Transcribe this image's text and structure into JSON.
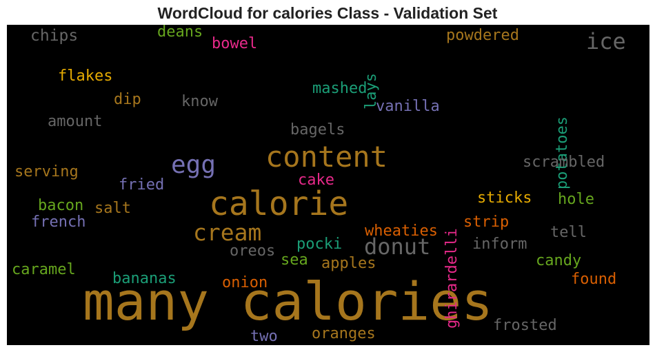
{
  "chart_data": {
    "type": "wordcloud",
    "title": "WordCloud for calories Class - Validation Set",
    "background": "#000000",
    "words": [
      {
        "text": "many calories",
        "color": "#a6761d",
        "rotate": false
      },
      {
        "text": "calorie",
        "color": "#a6761d",
        "rotate": false
      },
      {
        "text": "content",
        "color": "#a6761d",
        "rotate": false
      },
      {
        "text": "egg",
        "color": "#7570b3",
        "rotate": false
      },
      {
        "text": "cream",
        "color": "#a6761d",
        "rotate": false
      },
      {
        "text": "donut",
        "color": "#666666",
        "rotate": false
      },
      {
        "text": "ice",
        "color": "#666666",
        "rotate": false
      },
      {
        "text": "chips",
        "color": "#666666",
        "rotate": false
      },
      {
        "text": "deans",
        "color": "#66a61e",
        "rotate": false
      },
      {
        "text": "bowel",
        "color": "#e7298a",
        "rotate": false
      },
      {
        "text": "lays",
        "color": "#1b9e77",
        "rotate": true
      },
      {
        "text": "powdered",
        "color": "#a6761d",
        "rotate": false
      },
      {
        "text": "potatoes",
        "color": "#1b9e77",
        "rotate": true
      },
      {
        "text": "flakes",
        "color": "#e6ab02",
        "rotate": false
      },
      {
        "text": "mashed",
        "color": "#1b9e77",
        "rotate": false
      },
      {
        "text": "dip",
        "color": "#a6761d",
        "rotate": false
      },
      {
        "text": "know",
        "color": "#666666",
        "rotate": false
      },
      {
        "text": "vanilla",
        "color": "#7570b3",
        "rotate": false
      },
      {
        "text": "amount",
        "color": "#666666",
        "rotate": false
      },
      {
        "text": "bagels",
        "color": "#666666",
        "rotate": false
      },
      {
        "text": "ghirardelli",
        "color": "#e7298a",
        "rotate": true
      },
      {
        "text": "scrambled",
        "color": "#666666",
        "rotate": false
      },
      {
        "text": "serving",
        "color": "#a6761d",
        "rotate": false
      },
      {
        "text": "fried",
        "color": "#7570b3",
        "rotate": false
      },
      {
        "text": "cake",
        "color": "#e7298a",
        "rotate": false
      },
      {
        "text": "sticks",
        "color": "#e6ab02",
        "rotate": false
      },
      {
        "text": "hole",
        "color": "#66a61e",
        "rotate": false
      },
      {
        "text": "bacon",
        "color": "#66a61e",
        "rotate": false
      },
      {
        "text": "salt",
        "color": "#a6761d",
        "rotate": false
      },
      {
        "text": "french",
        "color": "#7570b3",
        "rotate": false
      },
      {
        "text": "wheaties",
        "color": "#d95f02",
        "rotate": false
      },
      {
        "text": "strip",
        "color": "#d95f02",
        "rotate": false
      },
      {
        "text": "tell",
        "color": "#666666",
        "rotate": false
      },
      {
        "text": "inform",
        "color": "#666666",
        "rotate": false
      },
      {
        "text": "oreos",
        "color": "#666666",
        "rotate": false
      },
      {
        "text": "pocki",
        "color": "#1b9e77",
        "rotate": false
      },
      {
        "text": "sea",
        "color": "#66a61e",
        "rotate": false
      },
      {
        "text": "apples",
        "color": "#a6761d",
        "rotate": false
      },
      {
        "text": "candy",
        "color": "#66a61e",
        "rotate": false
      },
      {
        "text": "caramel",
        "color": "#66a61e",
        "rotate": false
      },
      {
        "text": "bananas",
        "color": "#1b9e77",
        "rotate": false
      },
      {
        "text": "onion",
        "color": "#d95f02",
        "rotate": false
      },
      {
        "text": "found",
        "color": "#d95f02",
        "rotate": false
      },
      {
        "text": "frosted",
        "color": "#666666",
        "rotate": false
      },
      {
        "text": "two",
        "color": "#7570b3",
        "rotate": false
      },
      {
        "text": "oranges",
        "color": "#a6761d",
        "rotate": false
      }
    ]
  }
}
